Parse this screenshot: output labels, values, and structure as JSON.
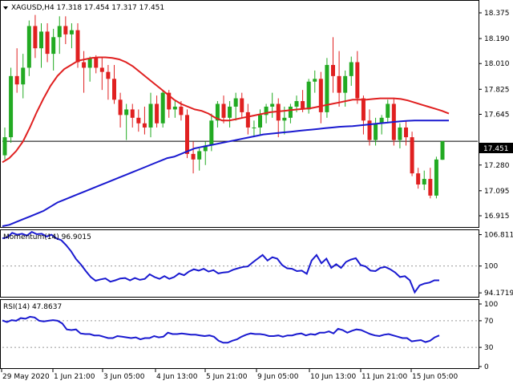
{
  "header": {
    "symbol_line": "XAGUSD,H4  17.318 17.454 17.317 17.451"
  },
  "chart_data": [
    {
      "type": "candlestick",
      "title": "XAGUSD,H4",
      "last_ohlc": {
        "open": 17.318,
        "high": 17.454,
        "low": 17.317,
        "close": 17.451
      },
      "current_price_label": "17.451",
      "current_price": 17.451,
      "ylim": [
        16.84,
        18.45
      ],
      "y_ticks": [
        "18.375",
        "18.190",
        "18.010",
        "17.825",
        "17.645",
        "17.451",
        "17.280",
        "17.095",
        "16.915"
      ],
      "y_tick_values": [
        18.375,
        18.19,
        18.01,
        17.825,
        17.645,
        17.451,
        17.28,
        17.095,
        16.915
      ],
      "colors": {
        "up": "#22aa22",
        "down": "#e02020",
        "ma_fast": "#e02020",
        "ma_slow": "#1a1ad0"
      },
      "candles": [
        [
          17.35,
          17.55,
          17.32,
          17.48
        ],
        [
          17.48,
          17.98,
          17.44,
          17.92
        ],
        [
          17.92,
          18.12,
          17.8,
          17.86
        ],
        [
          17.86,
          18.08,
          17.76,
          17.98
        ],
        [
          17.98,
          18.32,
          17.92,
          18.28
        ],
        [
          18.28,
          18.36,
          18.05,
          18.12
        ],
        [
          18.12,
          18.3,
          17.98,
          18.24
        ],
        [
          18.24,
          18.3,
          18.02,
          18.08
        ],
        [
          18.08,
          18.26,
          17.96,
          18.2
        ],
        [
          18.2,
          18.35,
          18.08,
          18.28
        ],
        [
          18.28,
          18.35,
          18.15,
          18.22
        ],
        [
          18.22,
          18.3,
          18.12,
          18.25
        ],
        [
          18.25,
          18.3,
          17.98,
          18.02
        ],
        [
          18.02,
          18.1,
          17.8,
          17.98
        ],
        [
          17.98,
          18.06,
          17.88,
          18.05
        ],
        [
          18.05,
          18.07,
          17.94,
          17.98
        ],
        [
          17.98,
          18.05,
          17.82,
          17.95
        ],
        [
          17.95,
          18.0,
          17.75,
          17.9
        ],
        [
          17.9,
          18.0,
          17.72,
          17.75
        ],
        [
          17.75,
          17.8,
          17.55,
          17.64
        ],
        [
          17.64,
          17.72,
          17.46,
          17.68
        ],
        [
          17.68,
          17.72,
          17.55,
          17.62
        ],
        [
          17.62,
          17.68,
          17.52,
          17.58
        ],
        [
          17.58,
          17.7,
          17.5,
          17.55
        ],
        [
          17.55,
          17.8,
          17.48,
          17.72
        ],
        [
          17.72,
          17.78,
          17.55,
          17.58
        ],
        [
          17.58,
          17.82,
          17.55,
          17.8
        ],
        [
          17.8,
          17.82,
          17.62,
          17.68
        ],
        [
          17.68,
          17.74,
          17.62,
          17.7
        ],
        [
          17.7,
          17.74,
          17.6,
          17.64
        ],
        [
          17.64,
          17.68,
          17.33,
          17.36
        ],
        [
          17.36,
          17.45,
          17.22,
          17.32
        ],
        [
          17.32,
          17.4,
          17.24,
          17.38
        ],
        [
          17.38,
          17.45,
          17.28,
          17.42
        ],
        [
          17.42,
          17.65,
          17.38,
          17.6
        ],
        [
          17.6,
          17.74,
          17.55,
          17.72
        ],
        [
          17.72,
          17.78,
          17.58,
          17.62
        ],
        [
          17.62,
          17.74,
          17.55,
          17.7
        ],
        [
          17.7,
          17.8,
          17.6,
          17.76
        ],
        [
          17.76,
          17.8,
          17.62,
          17.66
        ],
        [
          17.66,
          17.72,
          17.5,
          17.55
        ],
        [
          17.55,
          17.6,
          17.48,
          17.55
        ],
        [
          17.55,
          17.68,
          17.5,
          17.64
        ],
        [
          17.64,
          17.72,
          17.58,
          17.7
        ],
        [
          17.7,
          17.8,
          17.62,
          17.72
        ],
        [
          17.72,
          17.76,
          17.48,
          17.6
        ],
        [
          17.6,
          17.7,
          17.5,
          17.62
        ],
        [
          17.62,
          17.72,
          17.58,
          17.7
        ],
        [
          17.7,
          17.78,
          17.66,
          17.74
        ],
        [
          17.74,
          17.82,
          17.66,
          17.68
        ],
        [
          17.68,
          17.9,
          17.65,
          17.88
        ],
        [
          17.88,
          17.96,
          17.8,
          17.9
        ],
        [
          17.9,
          17.95,
          17.58,
          17.66
        ],
        [
          17.66,
          18.05,
          17.62,
          18.0
        ],
        [
          18.0,
          18.2,
          17.8,
          17.92
        ],
        [
          17.92,
          18.1,
          17.7,
          17.8
        ],
        [
          17.8,
          17.96,
          17.7,
          17.92
        ],
        [
          17.92,
          18.06,
          17.85,
          18.02
        ],
        [
          18.02,
          18.1,
          17.72,
          17.76
        ],
        [
          17.76,
          17.78,
          17.5,
          17.6
        ],
        [
          17.6,
          17.68,
          17.42,
          17.46
        ],
        [
          17.46,
          17.62,
          17.42,
          17.58
        ],
        [
          17.58,
          17.64,
          17.5,
          17.62
        ],
        [
          17.62,
          17.75,
          17.58,
          17.72
        ],
        [
          17.72,
          17.76,
          17.42,
          17.46
        ],
        [
          17.46,
          17.58,
          17.4,
          17.55
        ],
        [
          17.55,
          17.6,
          17.42,
          17.48
        ],
        [
          17.48,
          17.52,
          17.2,
          17.22
        ],
        [
          17.22,
          17.26,
          17.11,
          17.14
        ],
        [
          17.14,
          17.24,
          17.1,
          17.18
        ],
        [
          17.18,
          17.26,
          17.04,
          17.06
        ],
        [
          17.06,
          17.34,
          17.04,
          17.32
        ],
        [
          17.318,
          17.454,
          17.317,
          17.451
        ]
      ],
      "ma_fast": [
        17.3,
        17.33,
        17.38,
        17.45,
        17.55,
        17.66,
        17.76,
        17.85,
        17.92,
        17.97,
        18.0,
        18.03,
        18.04,
        18.05,
        18.055,
        18.055,
        18.05,
        18.04,
        18.02,
        17.99,
        17.95,
        17.91,
        17.87,
        17.83,
        17.79,
        17.75,
        17.72,
        17.7,
        17.68,
        17.67,
        17.65,
        17.62,
        17.6,
        17.6,
        17.61,
        17.62,
        17.63,
        17.64,
        17.65,
        17.66,
        17.665,
        17.67,
        17.675,
        17.68,
        17.685,
        17.69,
        17.7,
        17.71,
        17.72,
        17.73,
        17.74,
        17.75,
        17.75,
        17.75,
        17.755,
        17.76,
        17.76,
        17.76,
        17.755,
        17.745,
        17.73,
        17.715,
        17.7,
        17.685,
        17.67,
        17.65
      ],
      "ma_slow": [
        16.84,
        16.85,
        16.87,
        16.89,
        16.91,
        16.93,
        16.95,
        16.98,
        17.01,
        17.03,
        17.05,
        17.07,
        17.09,
        17.11,
        17.13,
        17.15,
        17.17,
        17.19,
        17.21,
        17.23,
        17.25,
        17.27,
        17.29,
        17.31,
        17.33,
        17.34,
        17.36,
        17.38,
        17.4,
        17.41,
        17.42,
        17.43,
        17.44,
        17.45,
        17.46,
        17.47,
        17.48,
        17.49,
        17.5,
        17.505,
        17.51,
        17.515,
        17.52,
        17.525,
        17.53,
        17.535,
        17.54,
        17.545,
        17.55,
        17.555,
        17.558,
        17.56,
        17.565,
        17.57,
        17.575,
        17.58,
        17.585,
        17.59,
        17.595,
        17.598,
        17.6,
        17.6,
        17.6,
        17.6,
        17.6,
        17.6
      ]
    },
    {
      "type": "line",
      "title": "Momentum(14) 96.9015",
      "ylim": [
        93.5,
        107.6
      ],
      "y_ticks": [
        "106.8115",
        "100",
        "94.1719"
      ],
      "y_tick_values": [
        106.8115,
        100,
        94.1719
      ],
      "values": [
        106.0,
        106.2,
        107.2,
        106.8,
        107.0,
        106.6,
        107.4,
        106.9,
        107.0,
        106.4,
        106.8,
        106.0,
        105.6,
        104.5,
        103.2,
        101.5,
        100.3,
        98.9,
        97.6,
        96.8,
        97.1,
        97.3,
        96.6,
        96.9,
        97.3,
        97.4,
        96.9,
        97.4,
        97.0,
        97.2,
        98.2,
        97.6,
        97.2,
        97.8,
        97.2,
        97.6,
        98.4,
        98.0,
        98.8,
        99.3,
        99.0,
        99.4,
        98.8,
        99.1,
        98.4,
        98.6,
        98.7,
        99.2,
        99.5,
        99.8,
        99.9,
        100.8,
        101.6,
        102.4,
        101.2,
        101.9,
        101.6,
        100.2,
        99.5,
        99.4,
        98.9,
        99.0,
        98.3,
        101.2,
        102.4,
        100.6,
        101.6,
        99.6,
        100.4,
        99.6,
        100.9,
        101.4,
        101.7,
        100.2,
        99.9,
        99.0,
        98.9,
        99.6,
        99.8,
        99.3,
        98.6,
        97.6,
        97.8,
        96.9,
        94.3,
        95.8,
        96.2,
        96.4,
        96.9,
        96.9
      ]
    },
    {
      "type": "line",
      "title": "RSI(14) 47.8637",
      "ylim": [
        0,
        100
      ],
      "y_ticks": [
        "100",
        "70",
        "30",
        "0"
      ],
      "y_tick_values": [
        100,
        70,
        30,
        0
      ],
      "values": [
        70.5,
        68.0,
        71.0,
        70.0,
        74.0,
        73.0,
        76.0,
        75.0,
        70.0,
        69.0,
        70.0,
        71.0,
        70.0,
        66.0,
        57.0,
        56.0,
        57.0,
        51.0,
        50.0,
        50.0,
        48.0,
        48.0,
        46.0,
        44.0,
        44.0,
        47.0,
        46.0,
        45.0,
        44.0,
        45.0,
        42.0,
        44.0,
        44.0,
        47.0,
        45.0,
        46.0,
        52.0,
        50.0,
        50.0,
        51.0,
        50.0,
        49.0,
        49.0,
        48.0,
        47.0,
        48.0,
        46.0,
        40.0,
        37.0,
        37.0,
        40.0,
        42.0,
        46.0,
        49.0,
        51.0,
        50.0,
        50.0,
        49.0,
        47.0,
        47.0,
        48.0,
        46.0,
        48.0,
        48.0,
        50.0,
        51.0,
        48.0,
        50.0,
        49.0,
        52.0,
        52.0,
        54.0,
        51.0,
        58.0,
        56.0,
        52.0,
        55.0,
        57.0,
        56.0,
        53.0,
        50.0,
        48.0,
        47.0,
        49.0,
        50.0,
        48.0,
        46.0,
        44.0,
        44.0,
        39.0,
        40.0,
        41.0,
        38.0,
        40.0,
        45.0,
        47.9
      ]
    }
  ],
  "x_axis": {
    "tick_labels": [
      "29 May 2020",
      "1 Jun 21:00",
      "3 Jun 05:00",
      "4 Jun 13:00",
      "5 Jun 21:00",
      "9 Jun 05:00",
      "10 Jun 13:00",
      "11 Jun 21:00",
      "15 Jun 05:00"
    ]
  }
}
